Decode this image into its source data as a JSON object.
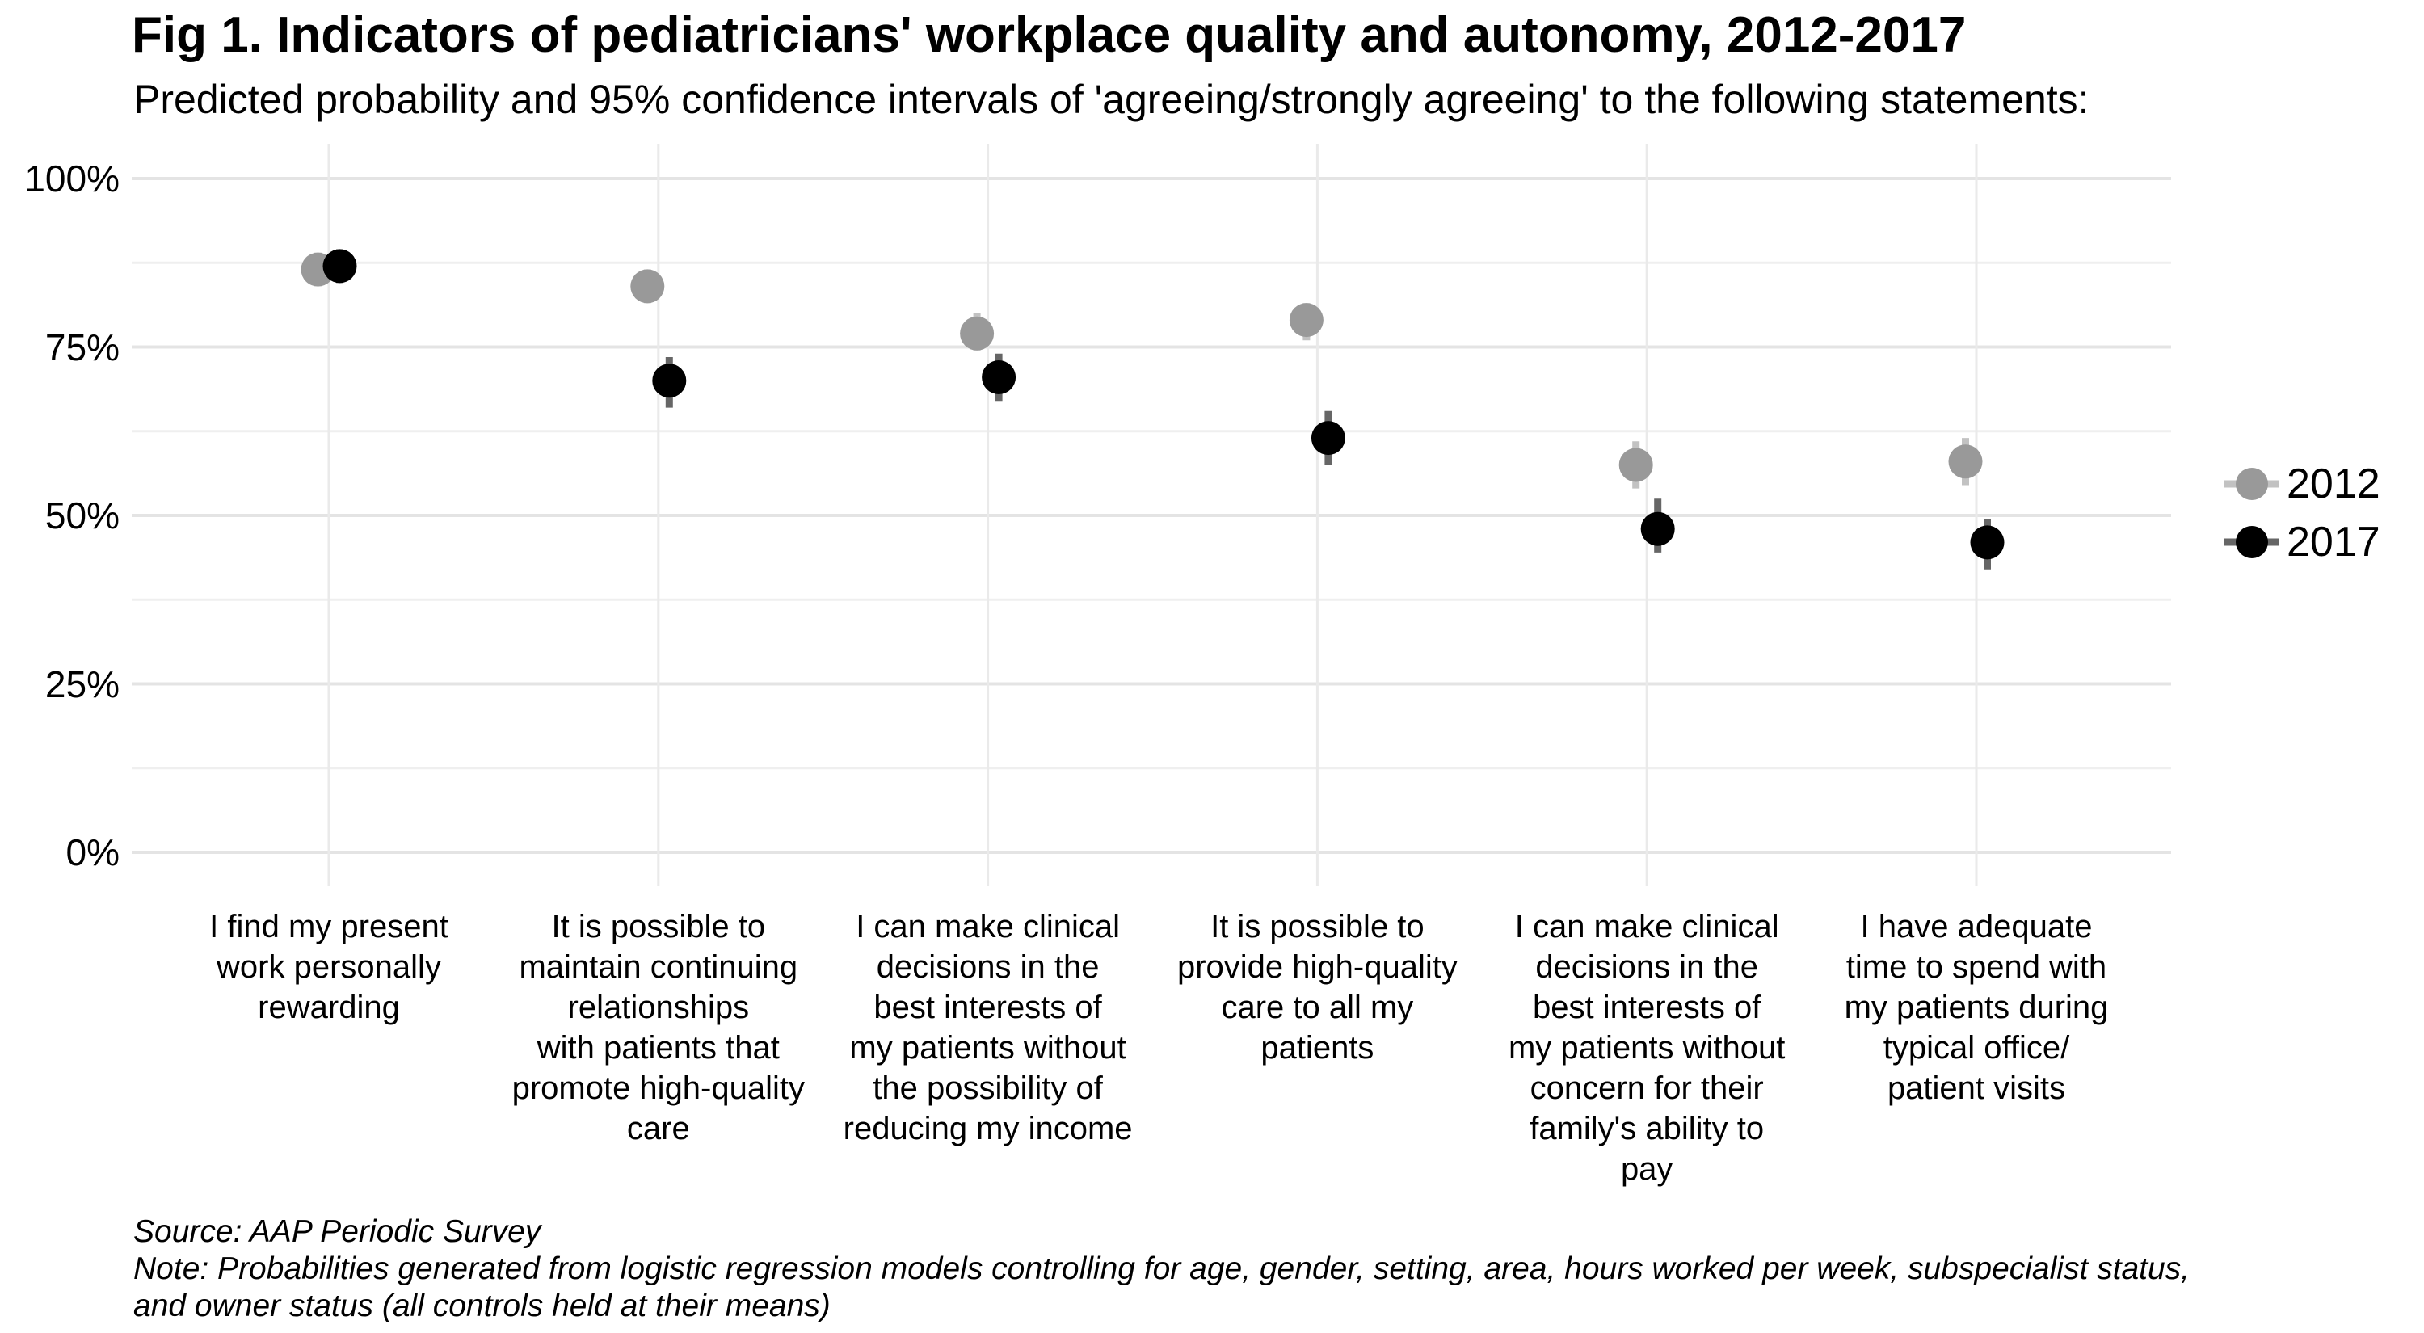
{
  "header": {
    "title": "Fig 1. Indicators of pediatricians' workplace quality and autonomy, 2012-2017",
    "subtitle": "Predicted probability and 95% confidence intervals of 'agreeing/strongly agreeing' to the following statements:"
  },
  "legend": {
    "items": [
      {
        "label": "2012",
        "color": "#999999"
      },
      {
        "label": "2017",
        "color": "#000000"
      }
    ]
  },
  "footer": {
    "line1": "Source: AAP Periodic Survey",
    "line2": "Note: Probabilities generated from logistic regression models controlling for age, gender, setting, area, hours worked per week, subspecialist status,",
    "line3": "and owner status (all controls held at their means)"
  },
  "chart_data": {
    "type": "scatter",
    "subtype": "pointrange-dodged",
    "title": "Fig 1. Indicators of pediatricians' workplace quality and autonomy, 2012-2017",
    "subtitle": "Predicted probability and 95% confidence intervals of 'agreeing/strongly agreeing' to the following statements:",
    "xlabel": "",
    "ylabel": "",
    "ylim": [
      0,
      100
    ],
    "grid": {
      "major": [
        0,
        25,
        50,
        75,
        100
      ],
      "minor": [
        12.5,
        37.5,
        62.5,
        87.5
      ],
      "vertical_per_category": true
    },
    "legend_position": "right",
    "yticks": [
      {
        "value": 100,
        "label": "100%"
      },
      {
        "value": 75,
        "label": "75%"
      },
      {
        "value": 50,
        "label": "50%"
      },
      {
        "value": 25,
        "label": "25%"
      },
      {
        "value": 0,
        "label": "0%"
      }
    ],
    "categories": [
      "I find my present\nwork personally\nrewarding",
      "It is possible to\nmaintain continuing\nrelationships\nwith patients that\npromote high-quality\ncare",
      "I can make clinical\ndecisions in the\nbest interests of\nmy patients without\nthe possibility of\nreducing my income",
      "It is possible to\nprovide high-quality\ncare to all my\npatients",
      "I can make clinical\ndecisions in the\nbest interests of\nmy patients without\nconcern for their\nfamily's ability to\npay",
      "I have adequate\ntime to spend with\nmy patients during\ntypical office/\npatient visits"
    ],
    "series": [
      {
        "name": "2012",
        "color": "#999999",
        "points": [
          {
            "value": 86.5,
            "ci_low": 84.0,
            "ci_high": 89.0
          },
          {
            "value": 84.0,
            "ci_low": 81.5,
            "ci_high": 86.5
          },
          {
            "value": 77.0,
            "ci_low": 74.5,
            "ci_high": 80.0
          },
          {
            "value": 79.0,
            "ci_low": 76.0,
            "ci_high": 81.5
          },
          {
            "value": 57.5,
            "ci_low": 54.0,
            "ci_high": 61.0
          },
          {
            "value": 58.0,
            "ci_low": 54.5,
            "ci_high": 61.5
          }
        ]
      },
      {
        "name": "2017",
        "color": "#000000",
        "points": [
          {
            "value": 87.0,
            "ci_low": 84.5,
            "ci_high": 89.5
          },
          {
            "value": 70.0,
            "ci_low": 66.0,
            "ci_high": 73.5
          },
          {
            "value": 70.5,
            "ci_low": 67.0,
            "ci_high": 74.0
          },
          {
            "value": 61.5,
            "ci_low": 57.5,
            "ci_high": 65.5
          },
          {
            "value": 48.0,
            "ci_low": 44.5,
            "ci_high": 52.5
          },
          {
            "value": 46.0,
            "ci_low": 42.0,
            "ci_high": 49.5
          }
        ]
      }
    ]
  }
}
